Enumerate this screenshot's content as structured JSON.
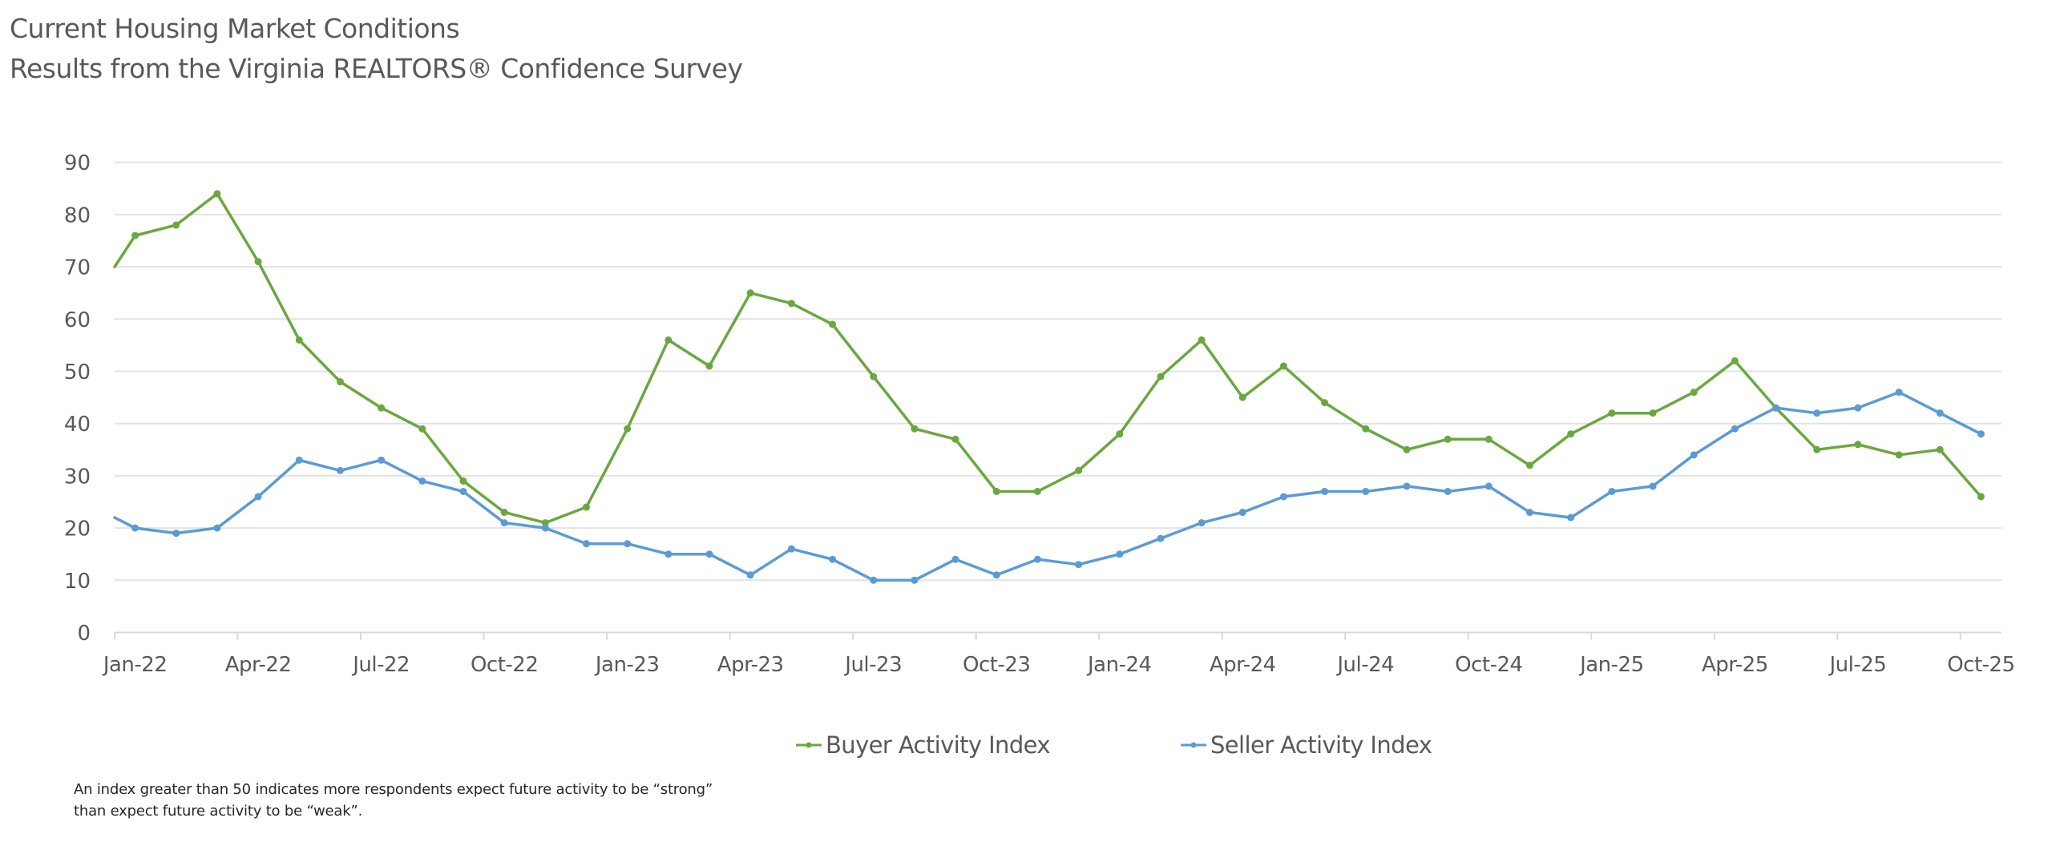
{
  "chart_data": {
    "type": "line",
    "title": "Current Housing Market Conditions",
    "subtitle": "Results from the Virginia REALTORS® Confidence Survey",
    "xlabel": "",
    "ylabel": "",
    "ylim": [
      0,
      90
    ],
    "yticks": [
      "0",
      "10",
      "20",
      "30",
      "40",
      "50",
      "60",
      "70",
      "80",
      "90"
    ],
    "grid": true,
    "legend_position": "bottom",
    "categories": [
      "Jan-22",
      "Feb-22",
      "Mar-22",
      "Apr-22",
      "May-22",
      "Jun-22",
      "Jul-22",
      "Aug-22",
      "Sep-22",
      "Oct-22",
      "Nov-22",
      "Dec-22",
      "Jan-23",
      "Feb-23",
      "Mar-23",
      "Apr-23",
      "May-23",
      "Jun-23",
      "Jul-23",
      "Aug-23",
      "Sep-23",
      "Oct-23",
      "Nov-23",
      "Dec-23",
      "Jan-24",
      "Feb-24",
      "Mar-24",
      "Apr-24",
      "May-24",
      "Jun-24",
      "Jul-24",
      "Aug-24",
      "Sep-24",
      "Oct-24",
      "Nov-24",
      "Dec-24",
      "Jan-25",
      "Feb-25",
      "Mar-25",
      "Apr-25",
      "May-25",
      "Jun-25",
      "Jul-25",
      "Aug-25",
      "Sep-25",
      "Oct-25"
    ],
    "xtick_labels": [
      "Jan-22",
      "Apr-22",
      "Jul-22",
      "Oct-22",
      "Jan-23",
      "Apr-23",
      "Jul-23",
      "Oct-23",
      "Jan-24",
      "Apr-24",
      "Jul-24",
      "Oct-24",
      "Jan-25",
      "Apr-25",
      "Jul-25",
      "Oct-25"
    ],
    "series": [
      {
        "name": "Buyer Activity Index",
        "color": "#6aa83f",
        "left_edge_value": 70,
        "values": [
          76,
          78,
          84,
          71,
          56,
          48,
          43,
          39,
          29,
          23,
          21,
          24,
          39,
          56,
          51,
          65,
          63,
          59,
          49,
          39,
          37,
          27,
          27,
          31,
          38,
          49,
          56,
          45,
          51,
          44,
          39,
          35,
          37,
          37,
          32,
          38,
          42,
          42,
          46,
          52,
          43,
          35,
          36,
          34,
          35,
          26
        ]
      },
      {
        "name": "Seller Activity Index",
        "color": "#5b9bd5",
        "left_edge_value": 22,
        "values": [
          20,
          19,
          20,
          26,
          33,
          31,
          33,
          29,
          27,
          21,
          20,
          17,
          17,
          15,
          15,
          11,
          16,
          14,
          10,
          10,
          14,
          11,
          14,
          13,
          15,
          18,
          21,
          23,
          26,
          27,
          27,
          28,
          27,
          28,
          23,
          22,
          27,
          28,
          34,
          39,
          43,
          42,
          43,
          46,
          42,
          38
        ]
      }
    ],
    "footnote": [
      "An index greater than 50 indicates more respondents expect future activity to be “strong”",
      "than expect future activity to be “weak”."
    ]
  },
  "colors": {
    "text": "#595959",
    "footnote_text": "#262626",
    "gridline": "#e3e3e3"
  }
}
